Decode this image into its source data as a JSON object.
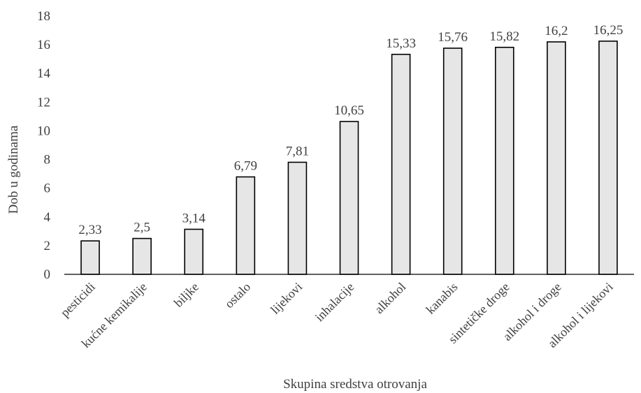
{
  "chart_data": {
    "type": "bar",
    "title": "",
    "xlabel": "Skupina sredstva otrovanja",
    "ylabel": "Dob u godinama",
    "ylim": [
      0,
      18
    ],
    "yticks": [
      0,
      2,
      4,
      6,
      8,
      10,
      12,
      14,
      16,
      18
    ],
    "grid": false,
    "legend": "none",
    "categories": [
      "pesticidi",
      "kućne kemikalije",
      "biljke",
      "ostalo",
      "lijekovi",
      "inhalacije",
      "alkohol",
      "kanabis",
      "sintetičke droge",
      "alkohol i droge",
      "alkohol i lijekovi"
    ],
    "values": [
      2.33,
      2.5,
      3.14,
      6.79,
      7.81,
      10.65,
      15.33,
      15.76,
      15.82,
      16.2,
      16.25
    ],
    "value_labels": [
      "2,33",
      "2,5",
      "3,14",
      "6,79",
      "7,81",
      "10,65",
      "15,33",
      "15,76",
      "15,82",
      "16,2",
      "16,25"
    ],
    "colors": {
      "bar_fill": "#e6e6e6",
      "bar_stroke": "#000000",
      "axis": "#000000"
    }
  }
}
